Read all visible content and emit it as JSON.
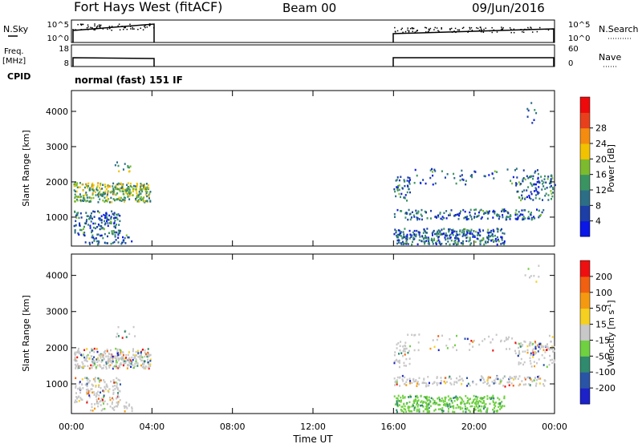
{
  "header": {
    "title": "Fort Hays West (fitACF)",
    "beam": "Beam 00",
    "date": "09/Jun/2016"
  },
  "top_panels": {
    "nsky_label": "N.Sky",
    "nsearch_label": "N.Search",
    "freq_label_1": "Freq.",
    "freq_label_2": "[MHz]",
    "nave_label": "Nave",
    "cpid_label": "CPID",
    "cpid_value": "normal (fast) 151 IF",
    "noise_left_ticks": [
      "10^5",
      "10^0"
    ],
    "noise_right_ticks": [
      "10^5",
      "10^0"
    ],
    "freq_left_ticks": [
      "18",
      "8"
    ],
    "freq_right_ticks": [
      "60",
      "0"
    ]
  },
  "chart_data": [
    {
      "type": "heatmap",
      "name": "power",
      "ylabel": "Slant Range [km]",
      "xlabel": "Time UT",
      "x_ticks": [
        "00:00",
        "04:00",
        "08:00",
        "12:00",
        "16:00",
        "20:00",
        "00:00"
      ],
      "y_ticks": [
        1000,
        2000,
        3000,
        4000
      ],
      "ylim": [
        180,
        4590
      ],
      "xlim_hours": [
        0,
        24
      ],
      "data_gap_hours": [
        4.1,
        16.0
      ],
      "colorbar": {
        "label": "Power [dB]",
        "ticks": [
          "4",
          "8",
          "12",
          "16",
          "20",
          "24",
          "28"
        ],
        "colors": [
          "#0a17e6",
          "#1c3ea6",
          "#2c6e86",
          "#3a9462",
          "#7dbb2e",
          "#f2c200",
          "#f58c10",
          "#e8401c",
          "#ee0a0a"
        ]
      }
    },
    {
      "type": "heatmap",
      "name": "velocity",
      "ylabel": "Slant Range [km]",
      "xlabel": "Time UT",
      "x_ticks": [
        "00:00",
        "04:00",
        "08:00",
        "12:00",
        "16:00",
        "20:00",
        "00:00"
      ],
      "y_ticks": [
        1000,
        2000,
        3000,
        4000
      ],
      "ylim": [
        180,
        4590
      ],
      "xlim_hours": [
        0,
        24
      ],
      "colorbar": {
        "label": "Velocity [m s-1]",
        "ticks": [
          "200",
          "100",
          "50",
          "15",
          "-15",
          "-50",
          "-100",
          "-200"
        ],
        "colors": [
          "#1c22c8",
          "#2a55a6",
          "#2f8a6e",
          "#6fd040",
          "#c8c8c8",
          "#f5d020",
          "#f59a10",
          "#f06010",
          "#ee1010"
        ]
      }
    }
  ]
}
